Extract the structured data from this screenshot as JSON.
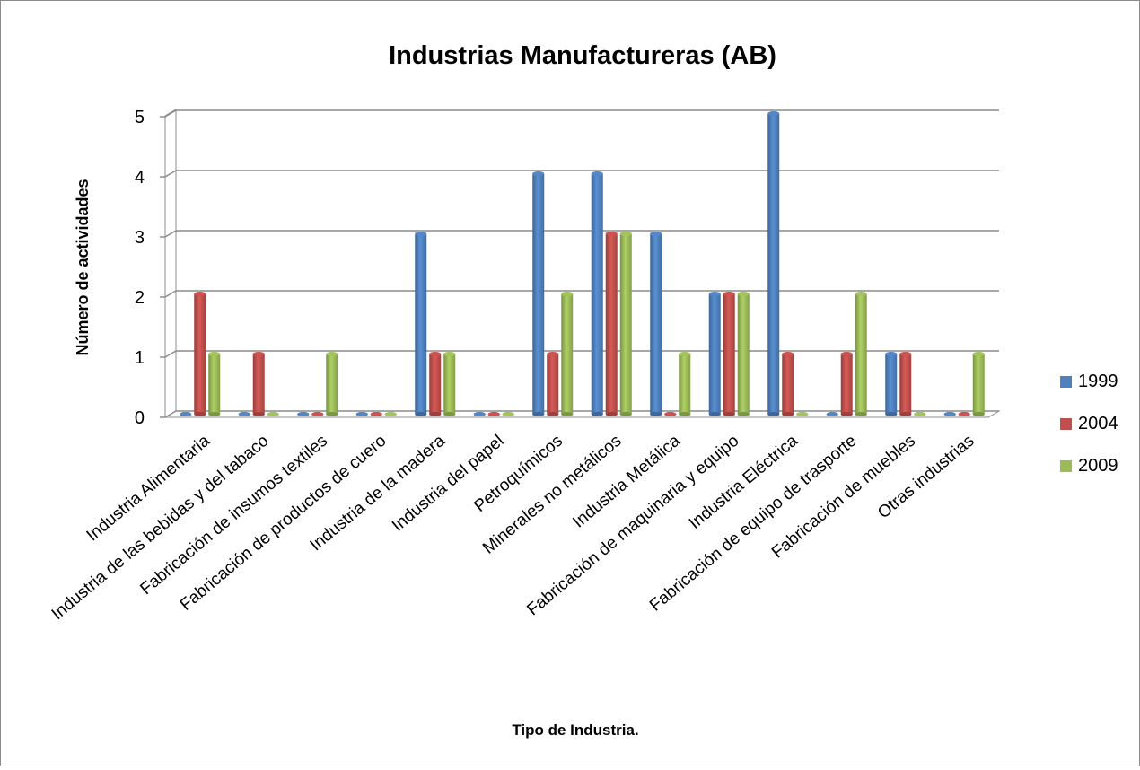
{
  "chart_data": {
    "type": "bar",
    "title": "Industrias Manufactureras (AB)",
    "xlabel": "Tipo de Industria.",
    "ylabel": "Número de actividades",
    "ylim": [
      0,
      5
    ],
    "yticks": [
      0,
      1,
      2,
      3,
      4,
      5
    ],
    "grid": true,
    "legend_position": "right",
    "categories": [
      "Industria Alimentaria",
      "Industria de las bebidas y del tabaco",
      "Fabricación de insumos textiles",
      "Fabricación de productos de cuero",
      "Industria de la madera",
      "Industria del papel",
      "Petroquímicos",
      "Minerales no metálicos",
      "Industria Metálica",
      "Fabricación de maquinaria y equipo",
      "Industria Eléctrica",
      "Fabricación de equipo de trasporte",
      "Fabricación de muebles",
      "Otras industrias"
    ],
    "series": [
      {
        "name": "1999",
        "color": "#4f81bd",
        "values": [
          0,
          0,
          0,
          0,
          3,
          0,
          4,
          4,
          3,
          2,
          5,
          0,
          1,
          0
        ]
      },
      {
        "name": "2004",
        "color": "#c0504d",
        "values": [
          2,
          1,
          0,
          0,
          1,
          0,
          1,
          3,
          0,
          2,
          1,
          1,
          1,
          0
        ]
      },
      {
        "name": "2009",
        "color": "#9bbb59",
        "values": [
          1,
          0,
          1,
          0,
          1,
          0,
          2,
          3,
          1,
          2,
          0,
          2,
          0,
          1
        ]
      }
    ]
  }
}
